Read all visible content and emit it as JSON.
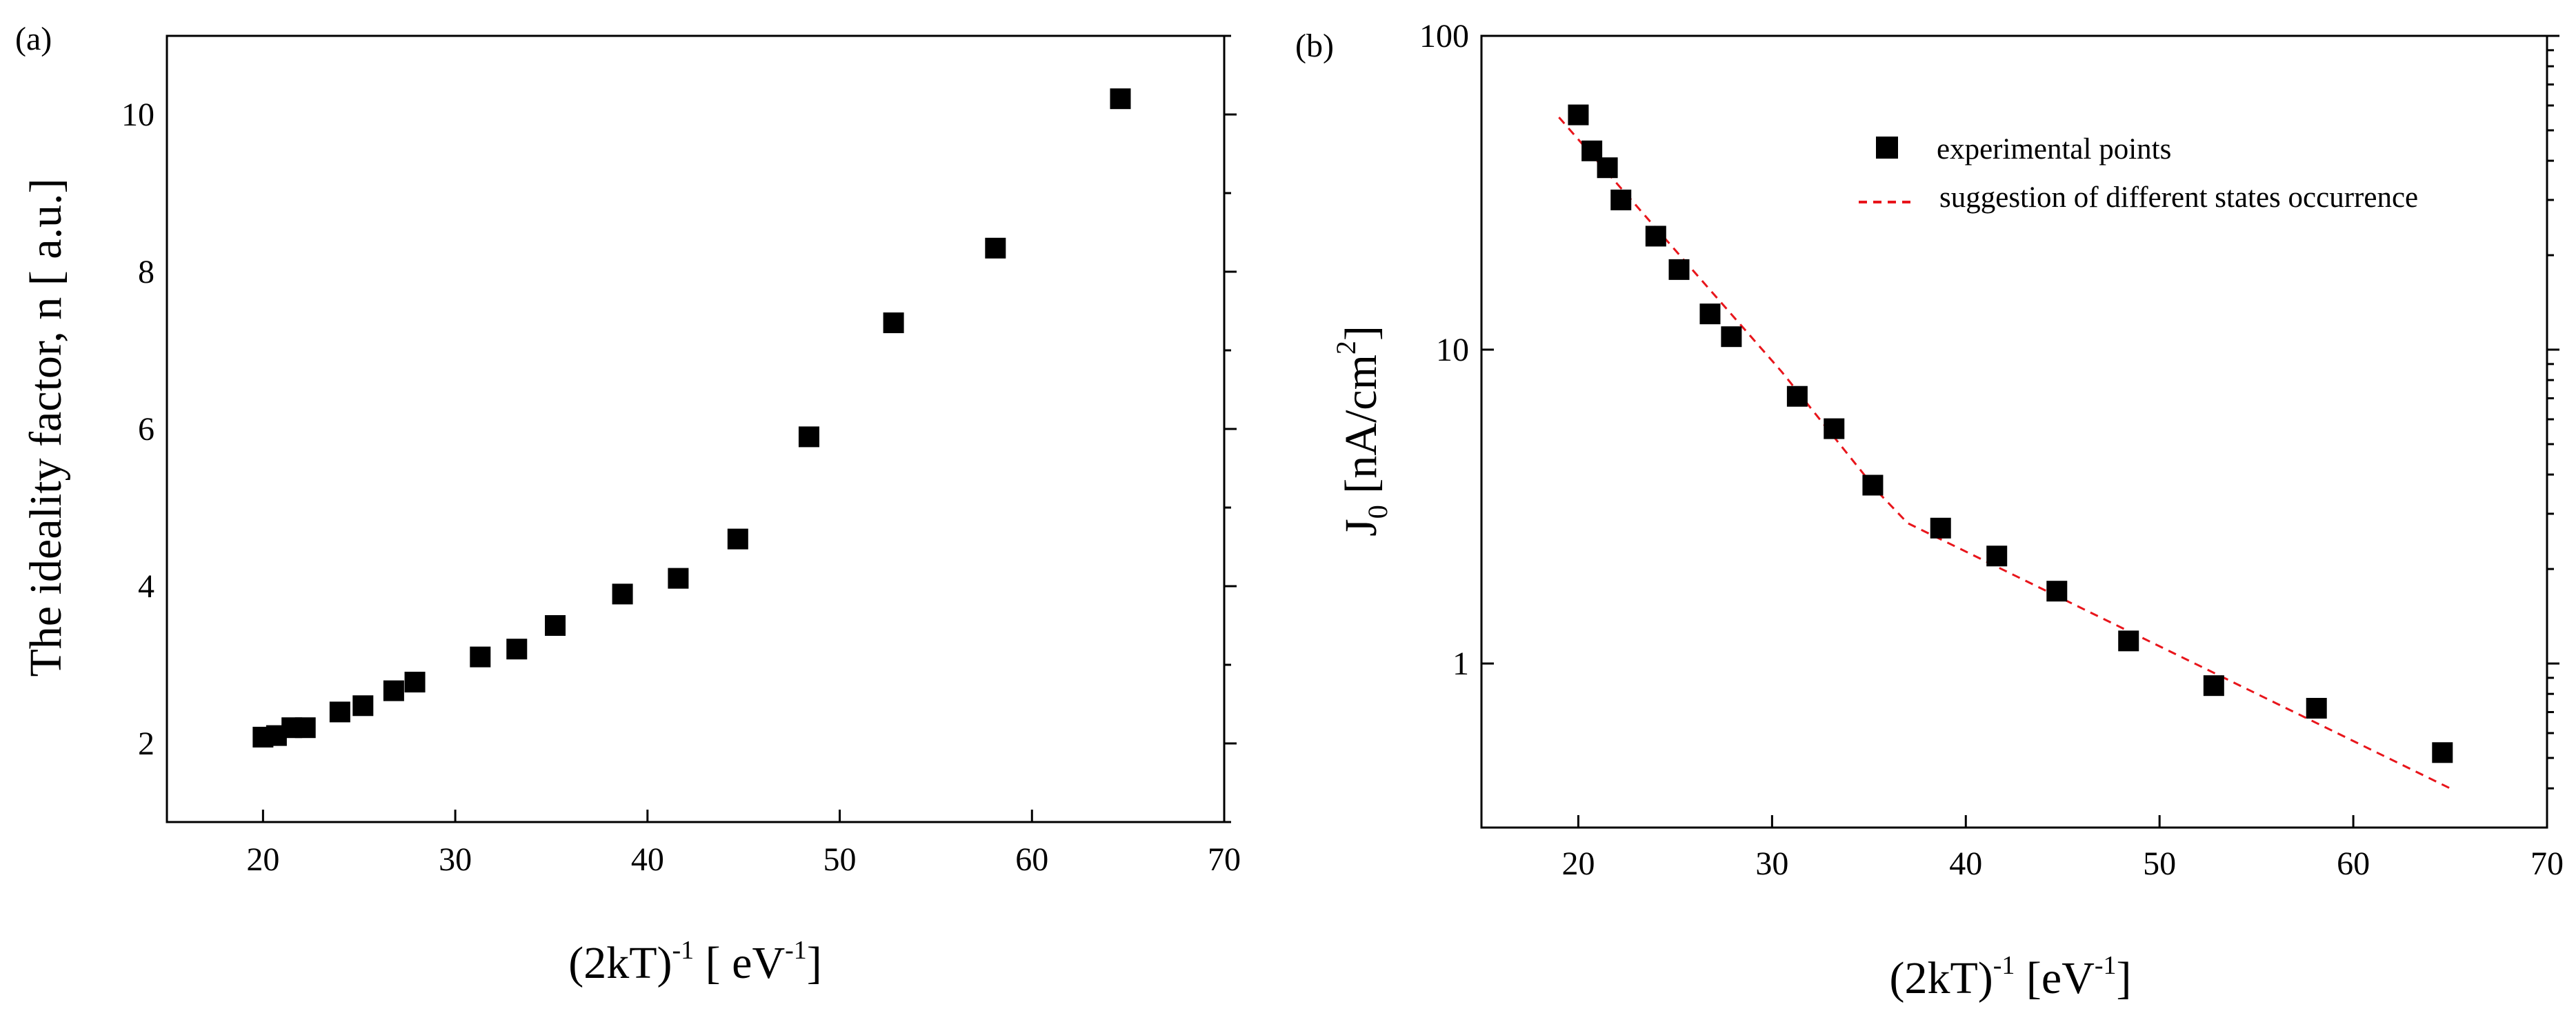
{
  "panels": [
    {
      "label": "(a)",
      "chart_data": {
        "type": "scatter",
        "title": "",
        "xlabel": "(2kT)^-1 [ eV^-1]",
        "ylabel": "The ideality factor, n [ a.u.]",
        "xlim": [
          15,
          70
        ],
        "ylim": [
          1,
          11
        ],
        "yscale": "linear",
        "x_ticks": [
          20,
          30,
          40,
          50,
          60,
          70
        ],
        "y_ticks": [
          2,
          4,
          6,
          8,
          10
        ],
        "grid": false,
        "series": [
          {
            "name": "ideality factor",
            "marker": "square",
            "x": [
              20.0,
              20.7,
              21.5,
              22.2,
              24.0,
              25.2,
              26.8,
              27.9,
              31.3,
              33.2,
              35.2,
              38.7,
              41.6,
              44.7,
              48.4,
              52.8,
              58.1,
              64.6
            ],
            "y": [
              2.08,
              2.1,
              2.2,
              2.2,
              2.4,
              2.48,
              2.67,
              2.78,
              3.1,
              3.2,
              3.5,
              3.9,
              4.1,
              4.6,
              5.9,
              7.35,
              8.3,
              10.2
            ]
          }
        ]
      }
    },
    {
      "label": "(b)",
      "chart_data": {
        "type": "scatter",
        "title": "",
        "xlabel": "(2kT)^-1 [eV^-1]",
        "ylabel": "J_0 [nA/cm^2]",
        "xlim": [
          15,
          70
        ],
        "ylim": [
          0.3,
          100
        ],
        "yscale": "log",
        "x_ticks": [
          20,
          30,
          40,
          50,
          60,
          70
        ],
        "y_ticks": [
          1,
          10,
          100
        ],
        "grid": false,
        "legend_position": "top-right",
        "series": [
          {
            "name": "experimental points",
            "marker": "square",
            "x": [
              20.0,
              20.7,
              21.5,
              22.2,
              24.0,
              25.2,
              26.8,
              27.9,
              31.3,
              33.2,
              35.2,
              38.7,
              41.6,
              44.7,
              48.4,
              52.8,
              58.1,
              64.6
            ],
            "y": [
              56,
              43,
              38,
              30,
              23,
              18,
              13,
              11,
              7.1,
              5.6,
              3.7,
              2.7,
              2.2,
              1.7,
              1.18,
              0.85,
              0.72,
              0.52
            ]
          },
          {
            "name": "suggestion of different states occurrence",
            "style": "dashed",
            "color": "#e8151b",
            "x": [
              19.0,
              30.5,
              35.5,
              37.0,
              65.0
            ],
            "y": [
              55,
              8.5,
              3.5,
              2.8,
              0.4
            ]
          }
        ]
      }
    }
  ]
}
